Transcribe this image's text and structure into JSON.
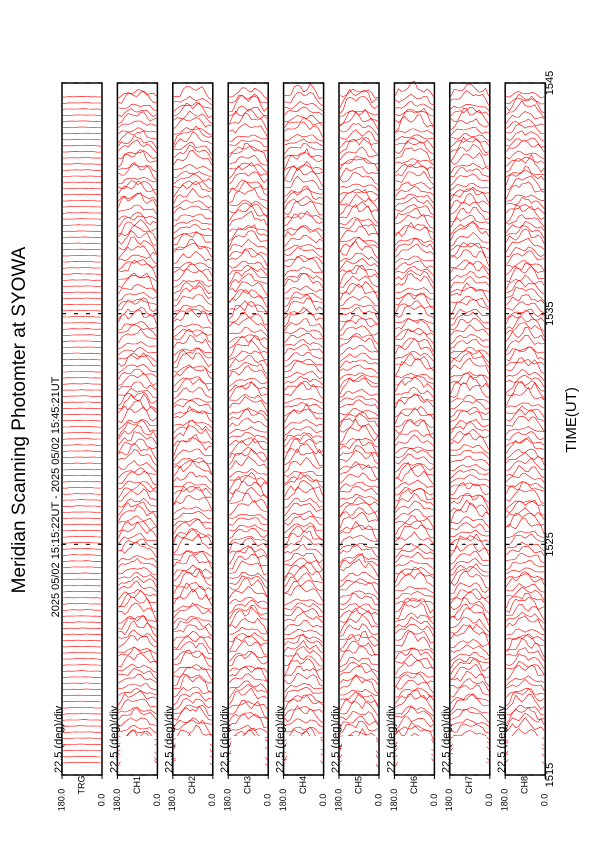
{
  "chart_data": {
    "type": "line",
    "title": "Meridian Scanning Photomter at SYOWA",
    "subtitle": "2025 05/02 15:15:22UT - 2025 05/02 15:45:21UT",
    "x_label": "TIME(UT)",
    "xlim": [
      1515,
      1545
    ],
    "xticks": [
      1515,
      1525,
      1535,
      1545
    ],
    "ylim": [
      0,
      180
    ],
    "yticks": [
      {
        "value": 180,
        "label": "180.0"
      },
      {
        "value": 0,
        "label": "0.0"
      }
    ],
    "scale_label": "22.5 (deg)/div",
    "panels": [
      "TRG",
      "CH1",
      "CH2",
      "CH3",
      "CH4",
      "CH5",
      "CH6",
      "CH7",
      "CH8"
    ],
    "color": "#ff0000"
  }
}
